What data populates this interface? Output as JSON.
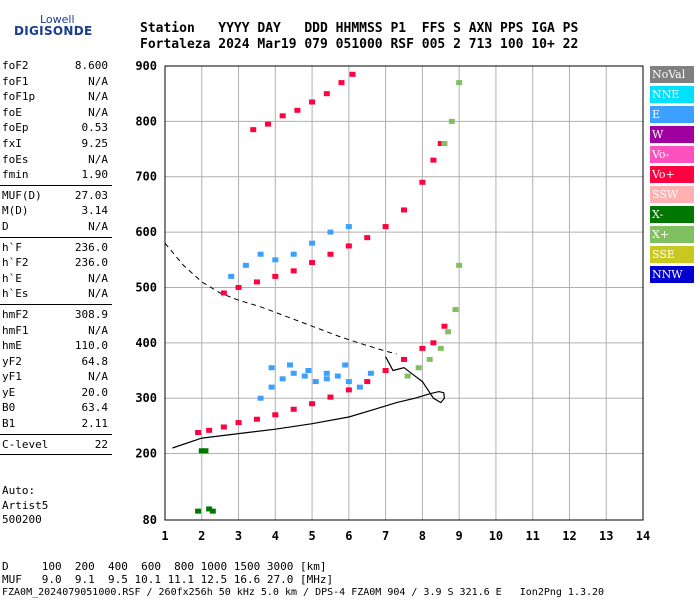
{
  "logo": {
    "top": "Lowell",
    "main": "DIGISONDE"
  },
  "header": {
    "line1": "Station   YYYY DAY   DDD HHMMSS P1  FFS S AXN PPS IGA PS",
    "line2": "Fortaleza 2024 Mar19 079 051000 RSF 005 2 713 100 10+ 22"
  },
  "params": [
    {
      "label": "foF2",
      "value": "8.600"
    },
    {
      "label": "foF1",
      "value": "N/A"
    },
    {
      "label": "foF1p",
      "value": "N/A"
    },
    {
      "label": "foE",
      "value": "N/A"
    },
    {
      "label": "foEp",
      "value": "0.53"
    },
    {
      "label": "fxI",
      "value": "9.25"
    },
    {
      "label": "foEs",
      "value": "N/A"
    },
    {
      "label": "fmin",
      "value": "1.90"
    },
    {
      "label": "MUF(D)",
      "value": "27.03"
    },
    {
      "label": "M(D)",
      "value": "3.14"
    },
    {
      "label": "D",
      "value": "N/A"
    },
    {
      "label": "h`F",
      "value": "236.0"
    },
    {
      "label": "h`F2",
      "value": "236.0"
    },
    {
      "label": "h`E",
      "value": "N/A"
    },
    {
      "label": "h`Es",
      "value": "N/A"
    },
    {
      "label": "hmF2",
      "value": "308.9"
    },
    {
      "label": "hmF1",
      "value": "N/A"
    },
    {
      "label": "hmE",
      "value": "110.0"
    },
    {
      "label": "yF2",
      "value": "64.8"
    },
    {
      "label": "yF1",
      "value": "N/A"
    },
    {
      "label": "yE",
      "value": "20.0"
    },
    {
      "label": "B0",
      "value": "63.4"
    },
    {
      "label": "B1",
      "value": "2.11"
    },
    {
      "label": "C-level",
      "value": "22"
    }
  ],
  "auto": {
    "line1": "Auto:",
    "line2": "Artist5",
    "line3": "500200"
  },
  "legend": [
    {
      "label": "NoVal",
      "color": "#808080"
    },
    {
      "label": "NNE",
      "color": "#00e0ff"
    },
    {
      "label": "E",
      "color": "#3ba0ff"
    },
    {
      "label": "W",
      "color": "#a000a0"
    },
    {
      "label": "Vo-",
      "color": "#ff50c0"
    },
    {
      "label": "Vo+",
      "color": "#ff0040"
    },
    {
      "label": "SSW",
      "color": "#ffb0b0"
    },
    {
      "label": "X-",
      "color": "#007800"
    },
    {
      "label": "X+",
      "color": "#80c060"
    },
    {
      "label": "SSE",
      "color": "#c8c820"
    },
    {
      "label": "NNW",
      "color": "#0000d0"
    }
  ],
  "footer": {
    "d_line": "D     100  200  400  600  800 1000 1500 3000 [km]",
    "muf_line": "MUF   9.0  9.1  9.5 10.1 11.1 12.5 16.6 27.0 [MHz]",
    "file_line": "FZA0M_2024079051000.RSF / 260fx256h 50 kHz 5.0 km / DPS-4 FZA0M 904 / 3.9 S 321.6 E   Ion2Png 1.3.20"
  },
  "chart_data": {
    "type": "scatter",
    "xlim": [
      1,
      14
    ],
    "ylim": [
      80,
      900
    ],
    "x_ticks": [
      1,
      2,
      3,
      4,
      5,
      6,
      7,
      8,
      9,
      10,
      11,
      12,
      13,
      14
    ],
    "y_ticks": [
      80,
      200,
      300,
      400,
      500,
      600,
      700,
      800,
      900
    ],
    "grid": true,
    "profile_curve": {
      "style": "solid",
      "x": [
        1.2,
        2.0,
        3.0,
        4.0,
        5.0,
        6.0,
        6.7,
        7.3,
        7.8,
        8.2,
        8.45,
        8.58,
        8.6,
        8.5,
        8.3,
        8.0,
        7.7,
        7.5,
        7.2,
        7.0
      ],
      "y": [
        210,
        228,
        236,
        244,
        254,
        266,
        280,
        292,
        300,
        308,
        312,
        310,
        300,
        292,
        300,
        330,
        345,
        355,
        350,
        375
      ]
    },
    "dashed_curve": {
      "style": "dashed",
      "x": [
        1.0,
        1.5,
        2.0,
        2.5,
        3.0,
        3.6,
        4.2,
        5.0,
        5.8,
        6.5,
        7.0,
        7.3
      ],
      "y": [
        580,
        540,
        510,
        490,
        477,
        465,
        450,
        430,
        410,
        395,
        385,
        380
      ]
    },
    "traces": [
      {
        "name": "Vo+",
        "x": [
          1.9,
          2.2,
          2.6,
          3.0,
          3.5,
          4.0,
          4.5,
          5.0,
          5.5,
          6.0,
          6.5,
          7.0,
          7.5,
          8.0,
          8.3,
          8.6
        ],
        "y": [
          238,
          242,
          248,
          256,
          262,
          270,
          280,
          290,
          302,
          315,
          330,
          350,
          370,
          390,
          400,
          430
        ]
      },
      {
        "name": "E",
        "x": [
          3.6,
          3.9,
          4.2,
          4.5,
          4.8,
          5.1,
          5.4,
          5.7,
          6.0,
          6.3,
          6.6,
          3.9,
          4.4,
          4.9,
          5.4,
          5.9
        ],
        "y": [
          300,
          320,
          335,
          345,
          340,
          330,
          335,
          340,
          330,
          320,
          345,
          355,
          360,
          350,
          345,
          360
        ]
      },
      {
        "name": "X+",
        "x": [
          7.6,
          7.9,
          8.2,
          8.5,
          8.7,
          8.9,
          9.0
        ],
        "y": [
          340,
          355,
          370,
          390,
          420,
          460,
          540
        ]
      },
      {
        "name": "Vo+",
        "x": [
          2.6,
          3.0,
          3.5,
          4.0,
          4.5,
          5.0,
          5.5,
          6.0,
          6.5,
          7.0,
          7.5,
          8.0,
          8.3,
          8.5
        ],
        "y": [
          490,
          500,
          510,
          520,
          530,
          545,
          560,
          575,
          590,
          610,
          640,
          690,
          730,
          760
        ]
      },
      {
        "name": "X+",
        "x": [
          8.6,
          8.8,
          9.0
        ],
        "y": [
          760,
          800,
          870
        ]
      },
      {
        "name": "E",
        "x": [
          2.8,
          3.2,
          3.6,
          4.0,
          4.5,
          5.0,
          5.5,
          6.0
        ],
        "y": [
          520,
          540,
          560,
          550,
          560,
          580,
          600,
          610
        ]
      },
      {
        "name": "Vo+",
        "x": [
          3.4,
          3.8,
          4.2,
          4.6,
          5.0,
          5.4,
          5.8,
          6.1
        ],
        "y": [
          785,
          795,
          810,
          820,
          835,
          850,
          870,
          885
        ]
      },
      {
        "name": "X-",
        "x": [
          2.0,
          2.1
        ],
        "y": [
          205,
          205
        ]
      },
      {
        "name": "X-",
        "x": [
          1.9,
          2.2,
          2.3
        ],
        "y": [
          96,
          100,
          96
        ]
      }
    ]
  }
}
